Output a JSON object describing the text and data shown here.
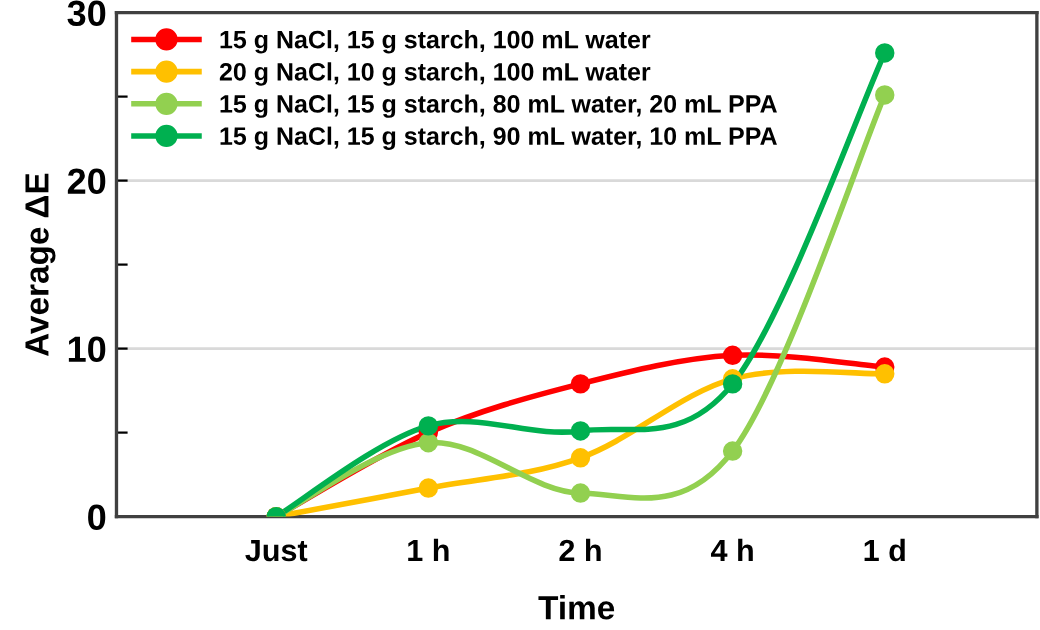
{
  "chart_data": {
    "type": "line",
    "xlabel": "Time",
    "ylabel": "Average ΔE",
    "categories": [
      "Just",
      "1 h",
      "2 h",
      "4 h",
      "1 d"
    ],
    "series": [
      {
        "name": "15 g NaCl, 15 g starch, 100 mL water",
        "color": "#ff0000",
        "values": [
          0,
          5.0,
          7.9,
          9.6,
          8.9
        ]
      },
      {
        "name": "20 g NaCl, 10 g starch, 100 mL water",
        "color": "#ffc000",
        "values": [
          0,
          1.7,
          3.5,
          8.2,
          8.5
        ]
      },
      {
        "name": "15 g NaCl, 15 g starch, 80 mL water, 20 mL PPA",
        "color": "#92d050",
        "values": [
          0,
          4.4,
          1.4,
          3.9,
          25.1
        ]
      },
      {
        "name": "15 g NaCl, 15 g starch, 90 mL water, 10 mL PPA",
        "color": "#00b050",
        "values": [
          0,
          5.4,
          5.1,
          7.9,
          27.6
        ]
      }
    ],
    "ylim": [
      0,
      30
    ],
    "yticks": [
      0,
      {
        "value": 5,
        "label": null
      },
      10,
      {
        "value": 15,
        "label": null
      },
      20,
      {
        "value": 25,
        "label": null
      },
      30
    ],
    "grid": "y",
    "legend": "top left",
    "marker": "circle",
    "line_style": "solid"
  }
}
